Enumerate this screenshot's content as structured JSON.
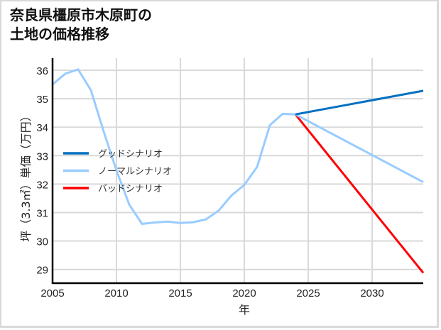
{
  "title_lines": [
    "奈良県橿原市木原町の",
    "土地の価格推移"
  ],
  "chart_data": {
    "type": "line",
    "title": "奈良県橿原市木原町の土地の価格推移",
    "xlabel": "年",
    "ylabel": "坪（3.3㎡）単価（万円）",
    "xlim": [
      2005,
      2034
    ],
    "ylim": [
      28.5,
      36.4
    ],
    "x_ticks": [
      2005,
      2010,
      2015,
      2020,
      2025,
      2030
    ],
    "y_ticks": [
      29,
      30,
      31,
      32,
      33,
      34,
      35,
      36
    ],
    "grid": true,
    "legend_position": "center-left",
    "series": [
      {
        "name": "グッドシナリオ",
        "color": "#0070c0",
        "x": [
          2024,
          2034
        ],
        "values": [
          34.45,
          35.28
        ]
      },
      {
        "name": "ノーマルシナリオ",
        "color": "#99ccff",
        "x": [
          2005,
          2006,
          2007,
          2008,
          2009,
          2010,
          2011,
          2012,
          2013,
          2014,
          2015,
          2016,
          2017,
          2018,
          2019,
          2020,
          2021,
          2022,
          2023,
          2024,
          2034
        ],
        "values": [
          35.5,
          35.88,
          36.03,
          35.3,
          33.85,
          32.48,
          31.28,
          30.6,
          30.65,
          30.68,
          30.63,
          30.66,
          30.76,
          31.07,
          31.6,
          31.97,
          32.6,
          34.07,
          34.47,
          34.45,
          32.07
        ]
      },
      {
        "name": "バッドシナリオ",
        "color": "#ff0000",
        "x": [
          2024,
          2034
        ],
        "values": [
          34.45,
          28.88
        ]
      }
    ]
  }
}
